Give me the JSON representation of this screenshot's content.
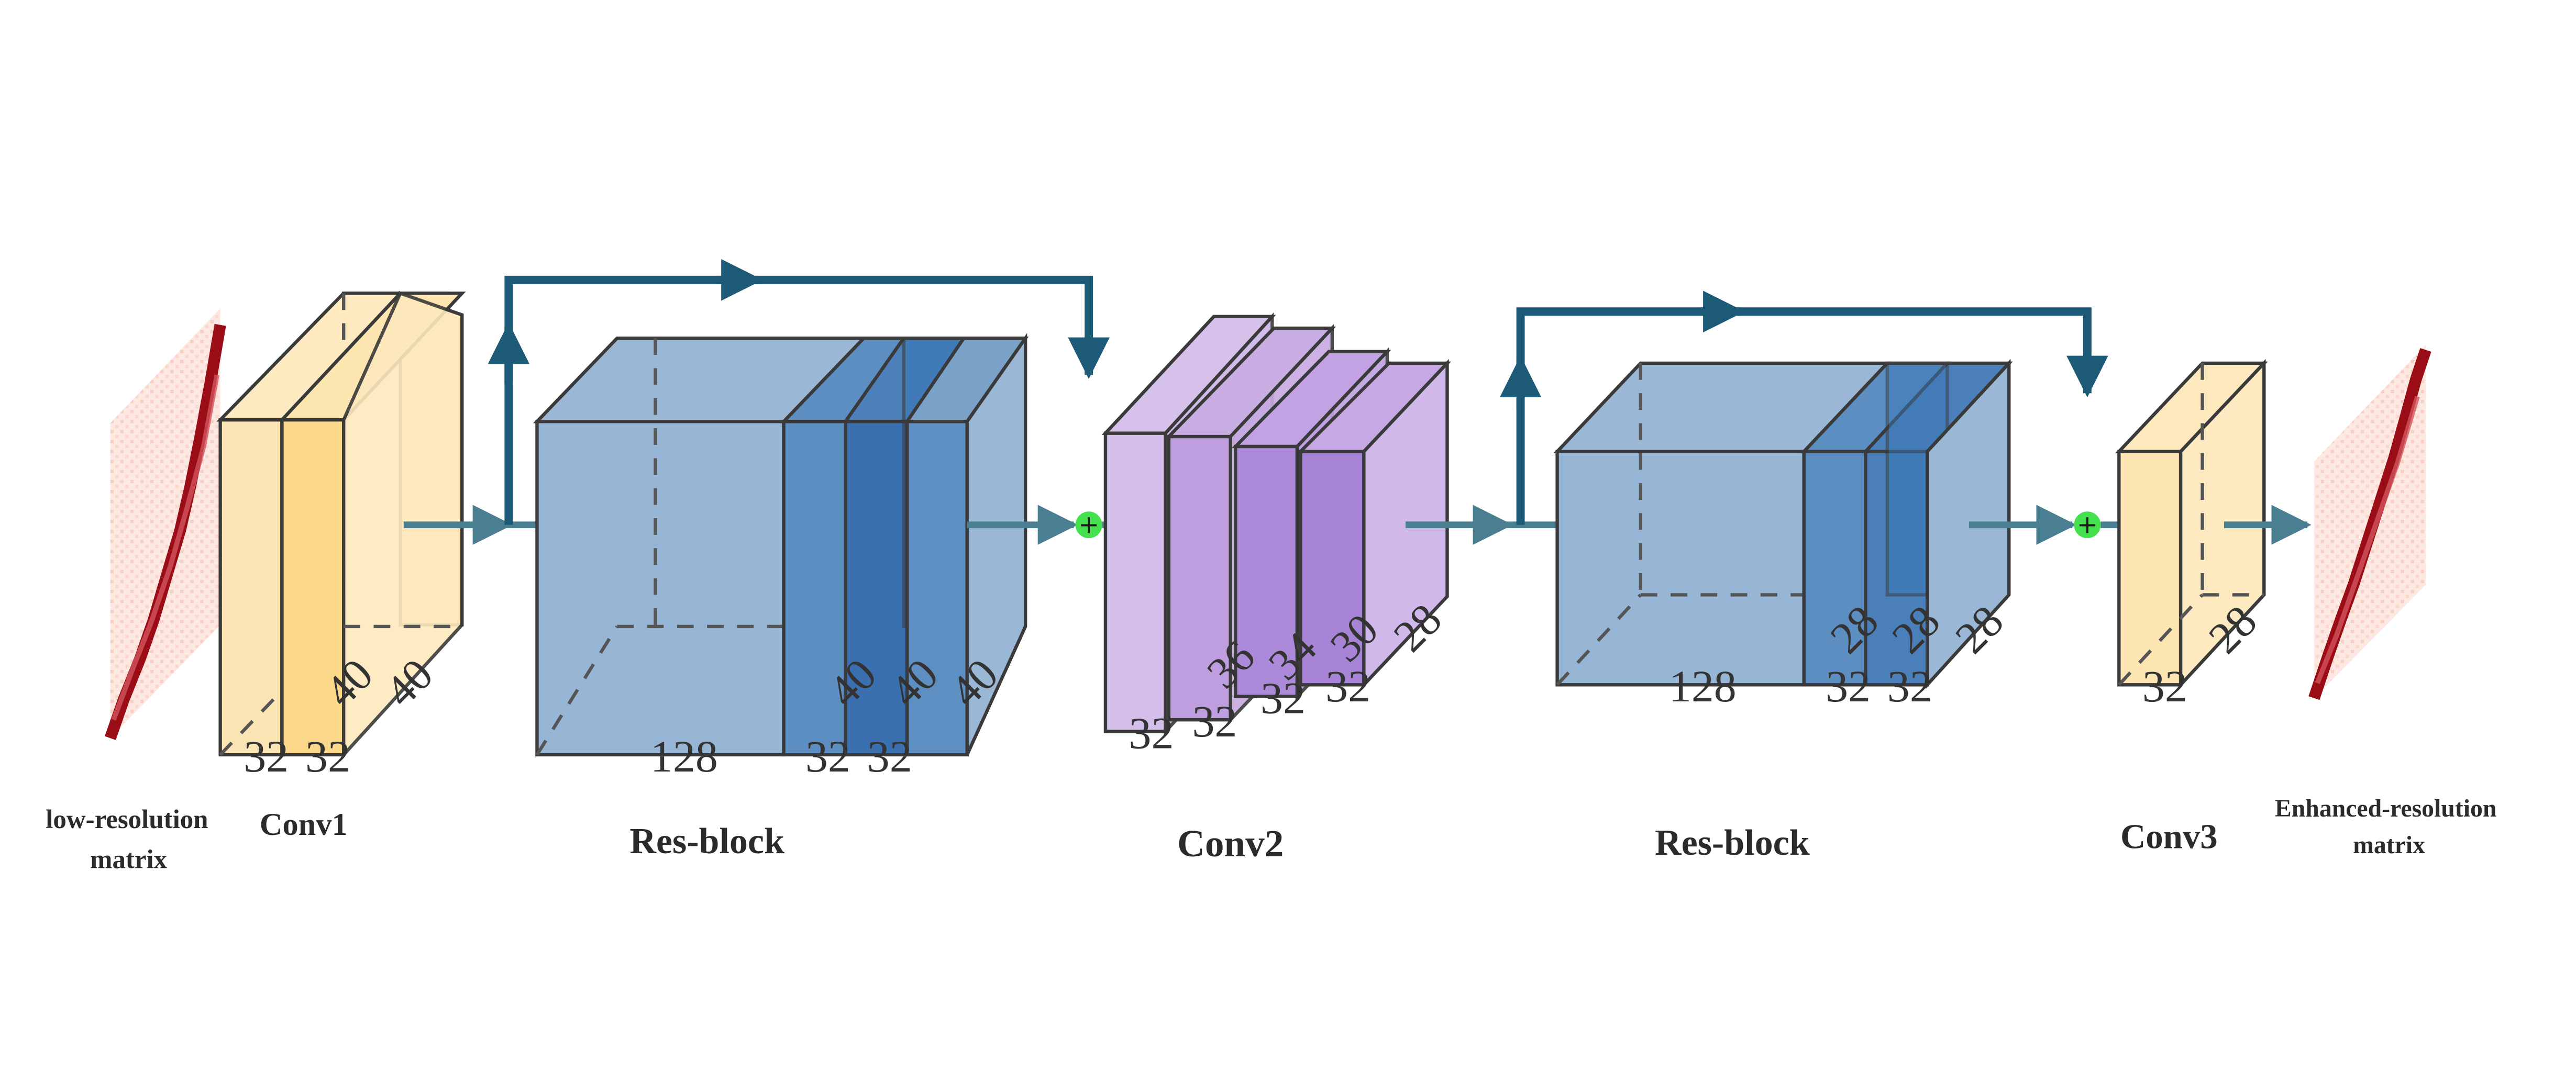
{
  "colors": {
    "conv_yellow": "#fbe2a8",
    "conv_yellow_dark": "#fcd98a",
    "resblock_blue": "#7aa2c8",
    "resblock_blue_dark": "#3a78b5",
    "conv2_purple": "#c9aee3",
    "conv2_purple_dark": "#a884d6",
    "matrix_red": "#b0101a",
    "add_node_green": "#44e04e",
    "arrow": "#4a7f91",
    "skip_line": "#1c5a78"
  },
  "labels": {
    "input": [
      "low-resolution",
      "matrix"
    ],
    "conv1": "Conv1",
    "resblock1": "Res-block",
    "conv2": "Conv2",
    "resblock2": "Res-block",
    "conv3": "Conv3",
    "output": [
      "Enhanced-resolution",
      "matrix"
    ]
  },
  "dims": {
    "conv1_w1": "32",
    "conv1_w2": "32",
    "conv1_d1": "40",
    "conv1_d2": "40",
    "res1_w1": "128",
    "res1_w2": "32",
    "res1_w3": "32",
    "res1_d1": "40",
    "res1_d2": "40",
    "res1_d3": "40",
    "conv2_w1": "32",
    "conv2_w2": "32",
    "conv2_w3": "32",
    "conv2_w4": "32",
    "conv2_d1": "36",
    "conv2_d2": "34",
    "conv2_d3": "30",
    "conv2_d4": "28",
    "res2_w1": "128",
    "res2_w2": "32",
    "res2_w3": "32",
    "res2_d1": "28",
    "res2_d2": "28",
    "res2_d3": "28",
    "conv3_w1": "32",
    "conv3_d1": "28"
  },
  "add_symbol": "+"
}
